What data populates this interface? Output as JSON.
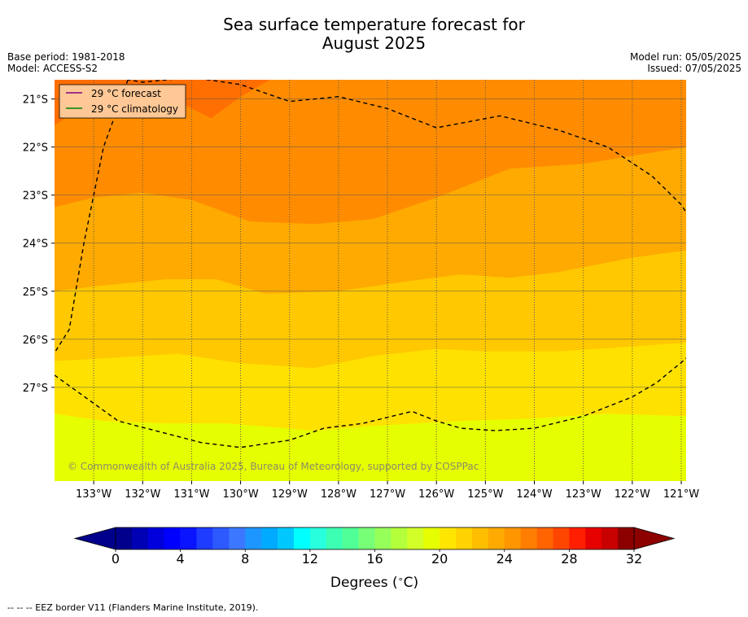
{
  "header": {
    "title_line1": "Sea surface temperature forecast for",
    "title_line2": "August 2025",
    "base_period": "Base period: 1981-2018",
    "model": "Model: ACCESS-S2",
    "model_run": "Model run: 05/05/2025",
    "issued": "Issued: 07/05/2025"
  },
  "map": {
    "copyright": "© Commonwealth of Australia 2025, Bureau of Meteorology, supported by COSPPac",
    "legend": [
      {
        "label": "29 °C  forecast",
        "color": "#800080"
      },
      {
        "label": "29 °C  climatology",
        "color": "#008000"
      }
    ],
    "legend_bg": "#ffc896",
    "band_colors": [
      "#e6ff00",
      "#ffe100",
      "#ffc800",
      "#ffaa00",
      "#ff8c00",
      "#ff6e00"
    ],
    "grid_color": "#555555",
    "eez_color": "#000000"
  },
  "chart_data": {
    "type": "heatmap",
    "title": "Sea surface temperature forecast for August 2025",
    "xlim": [
      -133.8,
      -120.9
    ],
    "ylim": [
      -28.95,
      -20.6
    ],
    "x_ticks": [
      {
        "value": -133,
        "label": "133°W"
      },
      {
        "value": -132,
        "label": "132°W"
      },
      {
        "value": -131,
        "label": "131°W"
      },
      {
        "value": -130,
        "label": "130°W"
      },
      {
        "value": -129,
        "label": "129°W"
      },
      {
        "value": -128,
        "label": "128°W"
      },
      {
        "value": -127,
        "label": "127°W"
      },
      {
        "value": -126,
        "label": "126°W"
      },
      {
        "value": -125,
        "label": "125°W"
      },
      {
        "value": -124,
        "label": "124°W"
      },
      {
        "value": -123,
        "label": "123°W"
      },
      {
        "value": -122,
        "label": "122°W"
      },
      {
        "value": -121,
        "label": "121°W"
      }
    ],
    "y_ticks": [
      {
        "value": -21,
        "label": "21°S"
      },
      {
        "value": -22,
        "label": "22°S"
      },
      {
        "value": -23,
        "label": "23°S"
      },
      {
        "value": -24,
        "label": "24°S"
      },
      {
        "value": -25,
        "label": "25°S"
      },
      {
        "value": -26,
        "label": "26°S"
      },
      {
        "value": -27,
        "label": "27°S"
      }
    ],
    "contour_bands_degC": [
      {
        "range": [
          21,
          22
        ],
        "boundary": null
      },
      {
        "range": [
          22,
          23
        ],
        "boundary": [
          [
            -133.8,
            -27.55
          ],
          [
            -132.8,
            -27.7
          ],
          [
            -131.5,
            -27.75
          ],
          [
            -130.3,
            -27.75
          ],
          [
            -128.5,
            -27.9
          ],
          [
            -127.3,
            -27.8
          ],
          [
            -125.5,
            -27.7
          ],
          [
            -124.0,
            -27.65
          ],
          [
            -122.5,
            -27.55
          ],
          [
            -120.9,
            -27.6
          ]
        ]
      },
      {
        "range": [
          23,
          24
        ],
        "boundary": [
          [
            -133.8,
            -26.45
          ],
          [
            -132.8,
            -26.4
          ],
          [
            -131.3,
            -26.3
          ],
          [
            -130.0,
            -26.5
          ],
          [
            -128.5,
            -26.6
          ],
          [
            -127.3,
            -26.35
          ],
          [
            -126.0,
            -26.2
          ],
          [
            -125.0,
            -26.25
          ],
          [
            -123.5,
            -26.25
          ],
          [
            -122.0,
            -26.15
          ],
          [
            -120.9,
            -26.07
          ]
        ]
      },
      {
        "range": [
          24,
          25
        ],
        "boundary": [
          [
            -133.8,
            -25.0
          ],
          [
            -133.0,
            -24.9
          ],
          [
            -131.5,
            -24.75
          ],
          [
            -130.5,
            -24.75
          ],
          [
            -129.5,
            -25.05
          ],
          [
            -128.0,
            -25.0
          ],
          [
            -126.5,
            -24.78
          ],
          [
            -125.5,
            -24.65
          ],
          [
            -124.5,
            -24.72
          ],
          [
            -123.5,
            -24.6
          ],
          [
            -122.0,
            -24.3
          ],
          [
            -120.9,
            -24.15
          ]
        ]
      },
      {
        "range": [
          25,
          26
        ],
        "boundary": [
          [
            -133.8,
            -23.25
          ],
          [
            -133.0,
            -23.05
          ],
          [
            -132.0,
            -22.95
          ],
          [
            -131.0,
            -23.1
          ],
          [
            -129.8,
            -23.55
          ],
          [
            -128.5,
            -23.6
          ],
          [
            -127.3,
            -23.5
          ],
          [
            -126.0,
            -23.05
          ],
          [
            -124.5,
            -22.45
          ],
          [
            -123.0,
            -22.35
          ],
          [
            -121.5,
            -22.1
          ],
          [
            -120.9,
            -22.0
          ]
        ]
      },
      {
        "range": [
          26,
          27
        ],
        "boundary": [
          [
            -133.8,
            -21.55
          ],
          [
            -133.3,
            -21.2
          ],
          [
            -132.6,
            -21.05
          ],
          [
            -131.8,
            -21.0
          ],
          [
            -131.5,
            -20.95
          ],
          [
            -130.6,
            -21.4
          ],
          [
            -130.0,
            -20.95
          ],
          [
            -129.4,
            -20.6
          ]
        ]
      }
    ],
    "eez_border": [
      [
        -132.3,
        -20.6
      ],
      [
        -132.8,
        -22.0
      ],
      [
        -133.2,
        -24.0
      ],
      [
        -133.5,
        -25.8
      ],
      [
        -134.0,
        -26.6
      ],
      [
        -132.5,
        -27.7
      ],
      [
        -130.8,
        -28.15
      ],
      [
        -130.0,
        -28.25
      ],
      [
        -129.0,
        -28.1
      ],
      [
        -128.3,
        -27.85
      ],
      [
        -127.5,
        -27.75
      ],
      [
        -126.5,
        -27.5
      ],
      [
        -126.0,
        -27.7
      ],
      [
        -125.5,
        -27.85
      ],
      [
        -124.8,
        -27.9
      ],
      [
        -124.0,
        -27.85
      ],
      [
        -123.0,
        -27.6
      ],
      [
        -122.0,
        -27.2
      ],
      [
        -121.5,
        -26.9
      ],
      [
        -120.9,
        -26.4
      ],
      [
        -120.5,
        -25.5
      ],
      [
        -120.3,
        -25.0
      ],
      [
        -120.5,
        -24.0
      ],
      [
        -121.0,
        -23.2
      ],
      [
        -121.6,
        -22.6
      ],
      [
        -122.5,
        -22.0
      ],
      [
        -123.5,
        -21.65
      ],
      [
        -124.7,
        -21.35
      ],
      [
        -126.0,
        -21.6
      ],
      [
        -126.5,
        -21.4
      ],
      [
        -127.0,
        -21.2
      ],
      [
        -128.0,
        -20.95
      ],
      [
        -129.0,
        -21.05
      ],
      [
        -130.0,
        -20.7
      ],
      [
        -131.0,
        -20.55
      ],
      [
        -132.0,
        -20.65
      ],
      [
        -132.3,
        -20.6
      ]
    ],
    "colorbar": {
      "label": "Degrees ($^\\circ$C)",
      "label_text": "Degrees (",
      "label_unit": "C)",
      "min": 0,
      "max": 32,
      "step": 1,
      "ticks": [
        {
          "value": 0,
          "label": "0"
        },
        {
          "value": 4,
          "label": "4"
        },
        {
          "value": 8,
          "label": "8"
        },
        {
          "value": 12,
          "label": "12"
        },
        {
          "value": 16,
          "label": "16"
        },
        {
          "value": 20,
          "label": "20"
        },
        {
          "value": 24,
          "label": "24"
        },
        {
          "value": 28,
          "label": "28"
        },
        {
          "value": 32,
          "label": "32"
        }
      ],
      "colors": [
        "#00008c",
        "#0000b4",
        "#0000dc",
        "#0000ff",
        "#0a14ff",
        "#1e3cff",
        "#2d5aff",
        "#3c78ff",
        "#1e96ff",
        "#00aaff",
        "#00c8ff",
        "#00ffff",
        "#28ffdc",
        "#3cffb4",
        "#50ff96",
        "#78ff78",
        "#96ff5a",
        "#b4ff3c",
        "#d2ff28",
        "#e6ff00",
        "#ffe600",
        "#ffd200",
        "#ffbe00",
        "#ffaa00",
        "#ff9600",
        "#ff7d00",
        "#ff6400",
        "#ff4600",
        "#ff1e00",
        "#e60000",
        "#c80000",
        "#8c0000"
      ],
      "under_color": "#00008c",
      "over_color": "#8c0000"
    }
  },
  "footer": {
    "eez_note": "--  --  -- EEZ border V11 (Flanders Marine Institute, 2019)."
  }
}
